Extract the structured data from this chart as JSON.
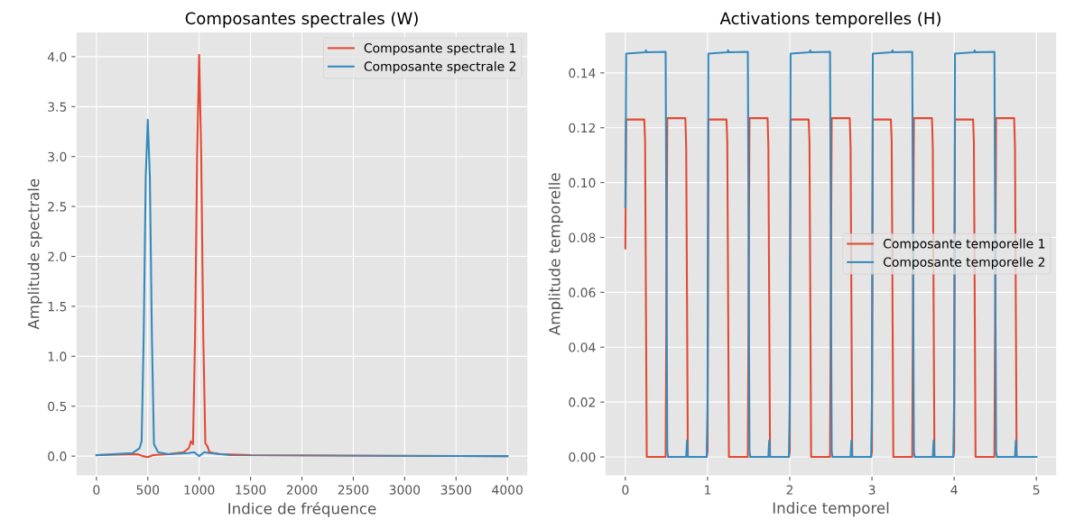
{
  "chart_data": [
    {
      "type": "line",
      "title": "Composantes spectrales (W)",
      "xlabel": "Indice de fréquence",
      "ylabel": "Amplitude spectrale",
      "xlim": [
        -200,
        4200
      ],
      "ylim": [
        -0.2,
        4.25
      ],
      "xticks": [
        0,
        500,
        1000,
        1500,
        2000,
        2500,
        3000,
        3500,
        4000
      ],
      "yticks": [
        {
          "value": 0,
          "label": "0.0"
        },
        0.5,
        {
          "value": 1,
          "label": "1.0"
        },
        1.5,
        {
          "value": 2,
          "label": "2.0"
        },
        2.5,
        {
          "value": 3,
          "label": "3.0"
        },
        3.5,
        {
          "value": 4,
          "label": "4.0"
        }
      ],
      "grid": true,
      "legend": "top right",
      "series": [
        {
          "name": "Composante spectrale 1",
          "color": "#e24a33",
          "x": [
            0,
            400,
            450,
            500,
            550,
            700,
            850,
            900,
            920,
            940,
            960,
            980,
            1000,
            1020,
            1040,
            1060,
            1080,
            1100,
            1200,
            1500,
            4000
          ],
          "values": [
            0.01,
            0.02,
            0.0,
            -0.01,
            0.01,
            0.02,
            0.04,
            0.08,
            0.15,
            0.12,
            1.2,
            3.0,
            4.02,
            3.0,
            1.2,
            0.13,
            0.1,
            0.04,
            0.02,
            0.01,
            0.0
          ]
        },
        {
          "name": "Composante spectrale 2",
          "color": "#348abd",
          "x": [
            0,
            350,
            420,
            440,
            460,
            480,
            500,
            520,
            540,
            560,
            580,
            600,
            700,
            900,
            950,
            1000,
            1050,
            1100,
            1300,
            4000
          ],
          "values": [
            0.01,
            0.03,
            0.08,
            0.15,
            1.2,
            2.8,
            3.37,
            2.8,
            1.2,
            0.12,
            0.08,
            0.04,
            0.02,
            0.03,
            0.04,
            0.0,
            0.04,
            0.03,
            0.01,
            0.0
          ]
        }
      ]
    },
    {
      "type": "line",
      "title": "Activations temporelles (H)",
      "xlabel": "Indice temporel",
      "ylabel": "Amplitude temporelle",
      "xlim": [
        -0.25,
        5.25
      ],
      "ylim": [
        -0.007,
        0.155
      ],
      "xticks": [
        0,
        1,
        2,
        3,
        4,
        5
      ],
      "yticks": [
        {
          "value": 0,
          "label": "0.00"
        },
        0.02,
        0.04,
        0.06,
        0.08,
        {
          "value": 0.1,
          "label": "0.10"
        },
        0.12,
        0.14
      ],
      "grid": true,
      "legend": "right",
      "series": [
        {
          "name": "Composante temporelle 1",
          "color": "#e24a33",
          "x": [
            0,
            0.01,
            0.23,
            0.24,
            0.26,
            0.49,
            0.51,
            0.73,
            0.74,
            0.76,
            0.99,
            1,
            1.01,
            1.23,
            1.24,
            1.26,
            1.49,
            1.51,
            1.73,
            1.74,
            1.76,
            1.99,
            2,
            2.01,
            2.23,
            2.24,
            2.26,
            2.49,
            2.51,
            2.73,
            2.74,
            2.76,
            2.99,
            3,
            3.01,
            3.23,
            3.24,
            3.26,
            3.49,
            3.51,
            3.73,
            3.74,
            3.76,
            3.99,
            4,
            4.01,
            4.23,
            4.24,
            4.26,
            4.49,
            4.51,
            4.73,
            4.74,
            4.76,
            5
          ],
          "values": [
            0.076,
            0.123,
            0.123,
            0.115,
            0,
            0,
            0.1235,
            0.1235,
            0.113,
            0,
            0,
            0.002,
            0.123,
            0.123,
            0.115,
            0,
            0,
            0.1235,
            0.1235,
            0.113,
            0,
            0,
            0.002,
            0.123,
            0.123,
            0.115,
            0,
            0,
            0.1235,
            0.1235,
            0.113,
            0,
            0,
            0.002,
            0.123,
            0.123,
            0.115,
            0,
            0,
            0.1235,
            0.1235,
            0.113,
            0,
            0,
            0.002,
            0.123,
            0.123,
            0.115,
            0,
            0,
            0.1235,
            0.1235,
            0.113,
            0,
            0
          ]
        },
        {
          "name": "Composante temporelle 2",
          "color": "#348abd",
          "x": [
            0,
            0.01,
            0.24,
            0.25,
            0.26,
            0.49,
            0.51,
            0.52,
            0.74,
            0.75,
            0.76,
            0.99,
            1,
            1.01,
            1.24,
            1.25,
            1.26,
            1.49,
            1.51,
            1.52,
            1.74,
            1.75,
            1.76,
            1.99,
            2,
            2.01,
            2.24,
            2.25,
            2.26,
            2.49,
            2.51,
            2.52,
            2.74,
            2.75,
            2.76,
            2.99,
            3,
            3.01,
            3.24,
            3.25,
            3.26,
            3.49,
            3.51,
            3.52,
            3.74,
            3.75,
            3.76,
            3.99,
            4,
            4.01,
            4.24,
            4.25,
            4.26,
            4.49,
            4.51,
            4.52,
            4.74,
            4.75,
            4.76,
            5
          ],
          "values": [
            0.091,
            0.147,
            0.1475,
            0.1482,
            0.1475,
            0.1477,
            0.002,
            0,
            0,
            0.006,
            0,
            0,
            0.02,
            0.147,
            0.1475,
            0.1482,
            0.1475,
            0.1477,
            0.002,
            0,
            0,
            0.006,
            0,
            0,
            0.02,
            0.147,
            0.1475,
            0.1482,
            0.1475,
            0.1477,
            0.002,
            0,
            0,
            0.006,
            0,
            0,
            0.02,
            0.147,
            0.1475,
            0.1482,
            0.1475,
            0.1477,
            0.002,
            0,
            0,
            0.006,
            0,
            0,
            0.02,
            0.147,
            0.1475,
            0.1482,
            0.1475,
            0.1477,
            0.002,
            0,
            0,
            0.006,
            0,
            0
          ]
        }
      ]
    }
  ]
}
